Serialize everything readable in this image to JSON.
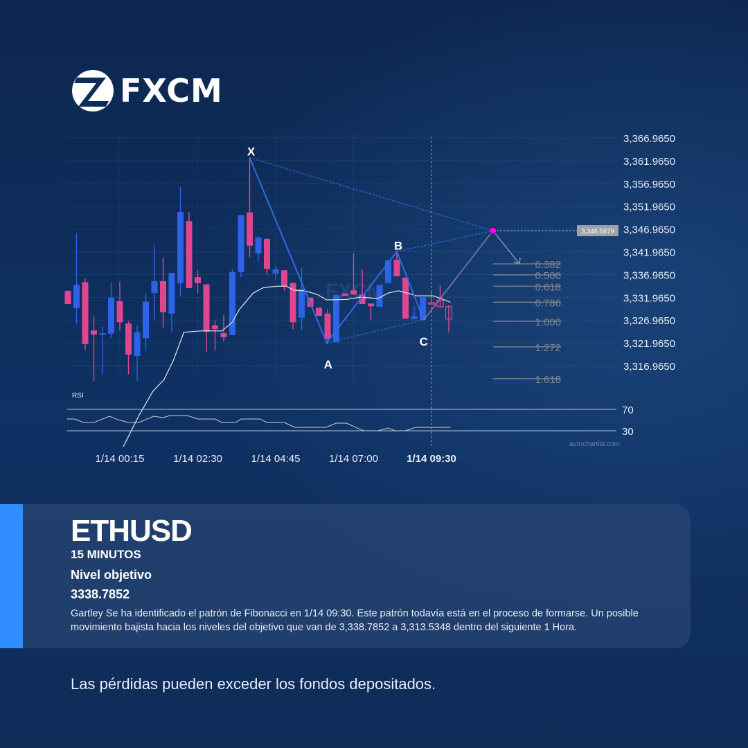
{
  "brand": {
    "name": "FXCM"
  },
  "card": {
    "symbol": "ETHUSD",
    "timeframe": "15 MINUTOS",
    "target_label": "Nivel objetivo",
    "target_value": "3338.7852",
    "description": "Gartley Se ha identificado el patrón de Fibonacci en 1/14 09:30. Este patrón todavía está en el proceso de formarse. Un posible movimiento bajista hacia los niveles del objetivo que van de 3,338.7852 a 3,313.5348 dentro del siguiente 1 Hora."
  },
  "disclaimer": "Las pérdidas pueden exceder los fondos depositados.",
  "colors": {
    "bull": "#2d63e8",
    "bear": "#e0468f",
    "pattern": "#2f6be6",
    "accent": "#2f8dff",
    "target_dot": "#ff00ff"
  },
  "chart_data": {
    "type": "candlestick",
    "price_ticks": [
      "3,366.9650",
      "3,361.9650",
      "3,356.9650",
      "3,351.9650",
      "3,346.9650",
      "3,341.9650",
      "3,336.9650",
      "3,331.9650",
      "3,326.9650",
      "3,321.9650",
      "3,316.9650"
    ],
    "price_values": [
      3366.965,
      3361.965,
      3356.965,
      3351.965,
      3346.965,
      3341.965,
      3336.965,
      3331.965,
      3326.965,
      3321.965,
      3316.965
    ],
    "time_ticks": [
      {
        "label": "1/14 00:15",
        "index": 6
      },
      {
        "label": "1/14 02:30",
        "index": 15
      },
      {
        "label": "1/14 04:45",
        "index": 24
      },
      {
        "label": "1/14 07:00",
        "index": 33
      },
      {
        "label": "1/14 09:30",
        "index": 42,
        "bold": true
      }
    ],
    "ohlc": [
      [
        3333.4,
        3333.4,
        3330.5,
        3330.5
      ],
      [
        3329.6,
        3346.0,
        3326.2,
        3334.7
      ],
      [
        3335.3,
        3336.0,
        3320.5,
        3321.7
      ],
      [
        3324.7,
        3327.8,
        3313.6,
        3323.8
      ],
      [
        3323.8,
        3325.5,
        3315.1,
        3324.1
      ],
      [
        3324.0,
        3335.2,
        3322.9,
        3331.9
      ],
      [
        3331.1,
        3335.4,
        3324.7,
        3326.5
      ],
      [
        3326.2,
        3326.8,
        3315.1,
        3319.4
      ],
      [
        3319.1,
        3325.9,
        3313.6,
        3324.3
      ],
      [
        3323.0,
        3332.8,
        3320.2,
        3331.0
      ],
      [
        3332.9,
        3343.4,
        3327.0,
        3335.5
      ],
      [
        3335.5,
        3340.7,
        3325.2,
        3328.7
      ],
      [
        3328.4,
        3337.3,
        3324.3,
        3337.3
      ],
      [
        3335.1,
        3356.2,
        3332.2,
        3350.7
      ],
      [
        3348.7,
        3350.7,
        3334.0,
        3334.0
      ],
      [
        3336.4,
        3337.9,
        3332.9,
        3335.1
      ],
      [
        3334.8,
        3334.8,
        3319.9,
        3324.4
      ],
      [
        3325.8,
        3326.8,
        3320.3,
        3325.0
      ],
      [
        3324.1,
        3328.1,
        3322.3,
        3323.2
      ],
      [
        3323.7,
        3338.2,
        3323.7,
        3337.5
      ],
      [
        3337.5,
        3350.0,
        3336.4,
        3350.0
      ],
      [
        3350.6,
        3362.6,
        3340.7,
        3343.3
      ],
      [
        3341.6,
        3345.5,
        3339.9,
        3345.1
      ],
      [
        3344.8,
        3344.8,
        3336.9,
        3338.2
      ],
      [
        3337.2,
        3339.0,
        3335.7,
        3338.1
      ],
      [
        3337.9,
        3337.9,
        3333.4,
        3334.4
      ],
      [
        3335.1,
        3335.1,
        3325.0,
        3326.5
      ],
      [
        3327.5,
        3338.4,
        3324.7,
        3333.8
      ],
      [
        3331.9,
        3331.9,
        3329.9,
        3329.9
      ],
      [
        3329.7,
        3329.7,
        3327.9,
        3327.9
      ],
      [
        3328.4,
        3329.4,
        3321.7,
        3322.9
      ],
      [
        3322.1,
        3332.5,
        3322.1,
        3332.5
      ],
      [
        3332.8,
        3332.8,
        3332.3,
        3332.3
      ],
      [
        3333.5,
        3341.6,
        3332.6,
        3332.6
      ],
      [
        3332.6,
        3338.1,
        3330.5,
        3330.5
      ],
      [
        3330.6,
        3330.6,
        3327.0,
        3330.0
      ],
      [
        3329.9,
        3334.6,
        3329.9,
        3334.6
      ],
      [
        3335.1,
        3340.1,
        3335.1,
        3340.1
      ],
      [
        3340.2,
        3342.0,
        3336.6,
        3336.6
      ],
      [
        3336.3,
        3336.3,
        3327.3,
        3327.3
      ],
      [
        3327.2,
        3330.0,
        3327.2,
        3327.8
      ],
      [
        3327.0,
        3332.0,
        3327.0,
        3332.0
      ],
      [
        3330.8,
        3333.5,
        3330.6,
        3330.6
      ],
      [
        3331.3,
        3334.6,
        3329.9,
        3329.9
      ],
      [
        3329.9,
        3330.3,
        3324.3,
        3327.2
      ]
    ],
    "forming_from_index": 42,
    "moving_average": [
      [
        6.4,
        3299.2
      ],
      [
        8.2,
        3306.0
      ],
      [
        9.8,
        3311.3
      ],
      [
        11.1,
        3313.9
      ],
      [
        12.2,
        3318.2
      ],
      [
        13.4,
        3324.3
      ],
      [
        15.4,
        3324.6
      ],
      [
        17.8,
        3324.6
      ],
      [
        19,
        3326.5
      ],
      [
        19.8,
        3329.3
      ],
      [
        21.4,
        3332.9
      ],
      [
        22.6,
        3334.1
      ],
      [
        24.2,
        3334.4
      ],
      [
        25.2,
        3334.4
      ],
      [
        26.2,
        3333.5
      ],
      [
        27.4,
        3333.4
      ],
      [
        28.8,
        3332.6
      ],
      [
        29.9,
        3331.4
      ],
      [
        32.2,
        3331.5
      ],
      [
        33.8,
        3332.0
      ],
      [
        35.8,
        3331.7
      ],
      [
        37,
        3332.9
      ],
      [
        38.2,
        3333.4
      ],
      [
        39.4,
        3332.8
      ],
      [
        40.2,
        3332.3
      ],
      [
        42.2,
        3332.3
      ],
      [
        44.2,
        3330.9
      ]
    ],
    "pattern": {
      "name": "Gartley",
      "points": [
        {
          "label": "X",
          "index": 21,
          "price": 3362.6
        },
        {
          "label": "A",
          "index": 29.9,
          "price": 3322.0
        },
        {
          "label": "B",
          "index": 38,
          "price": 3342.0
        },
        {
          "label": "C",
          "index": 41.1,
          "price": 3327.0
        },
        {
          "label": "",
          "index": 49.1,
          "price": 3346.5879
        }
      ]
    },
    "target_price_label": "3,346.5879",
    "fib_levels": [
      {
        "label": "0.382",
        "price": 3339.3
      },
      {
        "label": "0.500",
        "price": 3336.9
      },
      {
        "label": "0.618",
        "price": 3334.4
      },
      {
        "label": "0.786",
        "price": 3330.9
      },
      {
        "label": "1.000",
        "price": 3326.7
      },
      {
        "label": "1.272",
        "price": 3321.1
      },
      {
        "label": "1.618",
        "price": 3314.1
      }
    ],
    "rsi": {
      "label": "RSI",
      "levels": [
        70,
        30
      ],
      "values": [
        [
          -0.1,
          51.9
        ],
        [
          0.8,
          51.9
        ],
        [
          1.8,
          45.5
        ],
        [
          3,
          45.5
        ],
        [
          4.8,
          57.1
        ],
        [
          5.8,
          50.6
        ],
        [
          7,
          45.5
        ],
        [
          8.2,
          45.5
        ],
        [
          9.9,
          57.1
        ],
        [
          11,
          54.5
        ],
        [
          11.8,
          58.4
        ],
        [
          13.8,
          58.4
        ],
        [
          15,
          51.9
        ],
        [
          17,
          51.9
        ],
        [
          17.8,
          45.5
        ],
        [
          19.4,
          45.5
        ],
        [
          20,
          51.9
        ],
        [
          22.2,
          51.9
        ],
        [
          23,
          45.5
        ],
        [
          25,
          45.5
        ],
        [
          26.2,
          36.5
        ],
        [
          29.8,
          36.5
        ],
        [
          31,
          44.2
        ],
        [
          32.2,
          44.2
        ],
        [
          33.4,
          35.2
        ],
        [
          34.2,
          30.0
        ],
        [
          35.8,
          30.0
        ],
        [
          37,
          35.2
        ],
        [
          37.8,
          30.0
        ],
        [
          39,
          30.0
        ],
        [
          40.2,
          36.5
        ],
        [
          44.2,
          36.5
        ]
      ]
    },
    "watermark": "autochartist.com"
  }
}
